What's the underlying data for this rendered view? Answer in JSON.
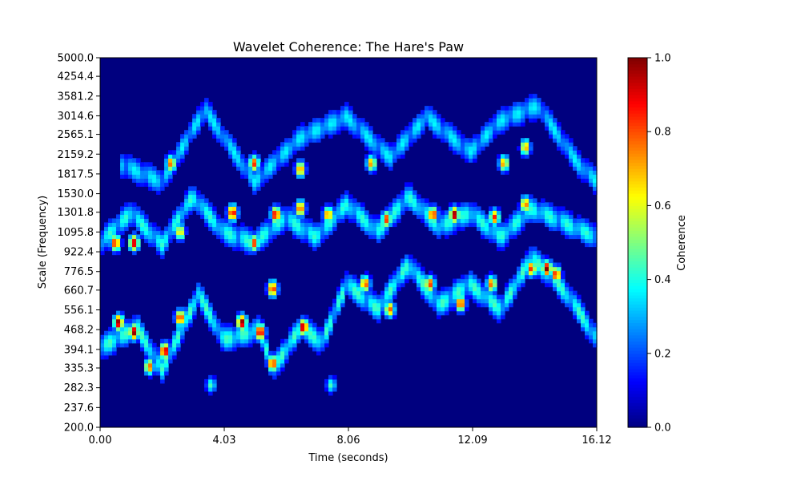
{
  "chart_data": {
    "type": "heatmap",
    "title": "Wavelet Coherence: The Hare's Paw",
    "xlabel": "Time (seconds)",
    "ylabel": "Scale (Frequency)",
    "xlim": [
      0,
      16.12
    ],
    "ylim": [
      200.0,
      5000.0
    ],
    "y_scale": "log",
    "x_ticks": [
      "0.00",
      "4.03",
      "8.06",
      "12.09",
      "16.12"
    ],
    "y_ticks": [
      "200.0",
      "237.6",
      "282.3",
      "335.3",
      "394.1",
      "468.2",
      "556.1",
      "660.7",
      "776.5",
      "922.4",
      "1095.8",
      "1301.8",
      "1530.0",
      "1817.5",
      "2159.2",
      "2565.1",
      "3014.6",
      "3581.2",
      "4254.4",
      "5000.0"
    ],
    "colorbar": {
      "label": "Coherence",
      "range": [
        0,
        1
      ],
      "ticks": [
        "0.0",
        "0.2",
        "0.4",
        "0.6",
        "0.8",
        "1.0"
      ],
      "colormap": "jet"
    },
    "background_value": 0.0,
    "ridges": [
      {
        "t": [
          0.0,
          1.2,
          2.0,
          3.2,
          4.0,
          5.2,
          5.6,
          6.5,
          7.2,
          8.0,
          9.0,
          10.0,
          11.0,
          12.0,
          13.0,
          14.0,
          14.8,
          15.5,
          16.12
        ],
        "f": [
          400,
          480,
          330,
          640,
          430,
          470,
          330,
          480,
          420,
          700,
          560,
          830,
          580,
          700,
          560,
          880,
          720,
          560,
          430
        ],
        "peak": 0.9
      },
      {
        "t": [
          0.0,
          1.0,
          2.0,
          3.0,
          4.0,
          5.0,
          6.0,
          7.0,
          8.0,
          9.0,
          10.0,
          11.0,
          12.0,
          13.0,
          14.0,
          15.0,
          16.12
        ],
        "f": [
          1000,
          1300,
          980,
          1500,
          1100,
          1000,
          1250,
          1050,
          1400,
          1100,
          1500,
          1150,
          1300,
          1050,
          1350,
          1200,
          1050
        ],
        "peak": 0.85
      },
      {
        "t": [
          0.6,
          2.0,
          3.4,
          5.0,
          6.5,
          8.0,
          9.4,
          10.6,
          12.0,
          13.0,
          14.2,
          15.5,
          16.12
        ],
        "f": [
          2000,
          1700,
          3200,
          1700,
          2500,
          3000,
          2100,
          3000,
          2200,
          2900,
          3300,
          2000,
          1700
        ],
        "peak": 0.75
      }
    ],
    "blobs": [
      {
        "t": 0.6,
        "f": 500,
        "v": 1.0
      },
      {
        "t": 1.1,
        "f": 460,
        "v": 1.0
      },
      {
        "t": 2.1,
        "f": 390,
        "v": 1.0
      },
      {
        "t": 1.6,
        "f": 340,
        "v": 0.8
      },
      {
        "t": 2.6,
        "f": 520,
        "v": 0.9
      },
      {
        "t": 4.6,
        "f": 500,
        "v": 1.0
      },
      {
        "t": 5.2,
        "f": 460,
        "v": 1.0
      },
      {
        "t": 5.6,
        "f": 350,
        "v": 0.9
      },
      {
        "t": 5.6,
        "f": 670,
        "v": 0.9
      },
      {
        "t": 6.6,
        "f": 480,
        "v": 1.0
      },
      {
        "t": 0.5,
        "f": 1000,
        "v": 0.9
      },
      {
        "t": 1.1,
        "f": 1000,
        "v": 0.95
      },
      {
        "t": 2.6,
        "f": 1100,
        "v": 0.7
      },
      {
        "t": 4.3,
        "f": 1300,
        "v": 0.95
      },
      {
        "t": 5.0,
        "f": 1000,
        "v": 0.85
      },
      {
        "t": 5.7,
        "f": 1280,
        "v": 0.95
      },
      {
        "t": 6.5,
        "f": 1350,
        "v": 0.85
      },
      {
        "t": 7.4,
        "f": 1280,
        "v": 0.8
      },
      {
        "t": 9.3,
        "f": 1230,
        "v": 0.85
      },
      {
        "t": 10.8,
        "f": 1280,
        "v": 0.9
      },
      {
        "t": 11.5,
        "f": 1280,
        "v": 1.0
      },
      {
        "t": 12.8,
        "f": 1250,
        "v": 0.85
      },
      {
        "t": 13.8,
        "f": 1400,
        "v": 0.8
      },
      {
        "t": 2.3,
        "f": 2000,
        "v": 0.8
      },
      {
        "t": 5.0,
        "f": 2000,
        "v": 0.85
      },
      {
        "t": 6.5,
        "f": 1900,
        "v": 0.8
      },
      {
        "t": 8.8,
        "f": 2000,
        "v": 0.75
      },
      {
        "t": 13.1,
        "f": 2000,
        "v": 0.75
      },
      {
        "t": 13.8,
        "f": 2300,
        "v": 0.75
      },
      {
        "t": 8.6,
        "f": 700,
        "v": 0.85
      },
      {
        "t": 10.7,
        "f": 700,
        "v": 0.85
      },
      {
        "t": 11.7,
        "f": 590,
        "v": 0.9
      },
      {
        "t": 12.7,
        "f": 700,
        "v": 0.8
      },
      {
        "t": 14.0,
        "f": 800,
        "v": 0.85
      },
      {
        "t": 14.5,
        "f": 800,
        "v": 1.0
      },
      {
        "t": 14.8,
        "f": 760,
        "v": 0.9
      },
      {
        "t": 9.4,
        "f": 560,
        "v": 0.8
      },
      {
        "t": 3.6,
        "f": 290,
        "v": 0.45
      },
      {
        "t": 7.5,
        "f": 290,
        "v": 0.45
      }
    ]
  }
}
